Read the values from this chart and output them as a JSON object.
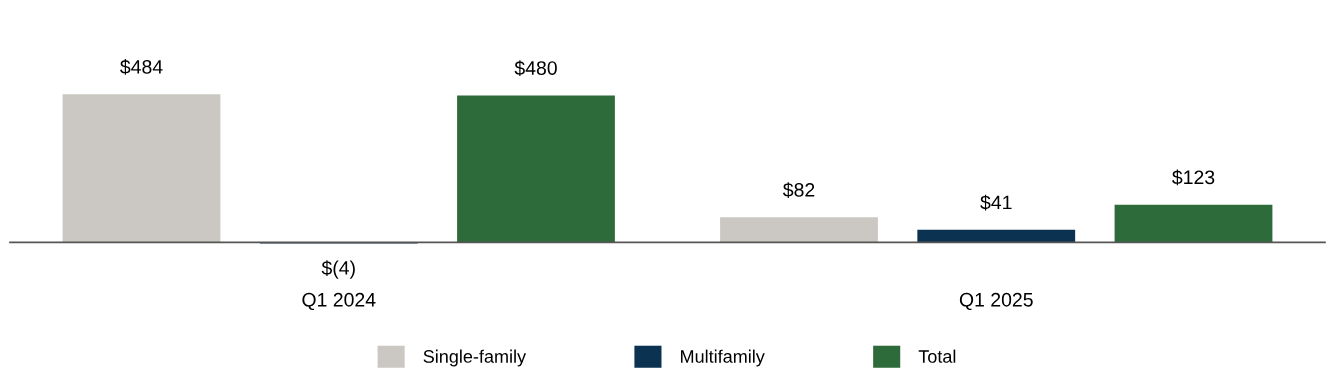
{
  "chart_data": {
    "type": "bar",
    "categories": [
      "Q1 2024",
      "Q1 2025"
    ],
    "series": [
      {
        "name": "Single-family",
        "color": "#cbc8c3",
        "values": [
          484,
          82
        ],
        "value_labels": [
          "$484",
          "$82"
        ]
      },
      {
        "name": "Multifamily",
        "color": "#0b3250",
        "values": [
          -4,
          41
        ],
        "value_labels": [
          "$(4)",
          "$41"
        ]
      },
      {
        "name": "Total",
        "color": "#2e6b3a",
        "values": [
          480,
          123
        ],
        "value_labels": [
          "$480",
          "$123"
        ]
      }
    ],
    "tick_labels": "x",
    "grid": false,
    "legend": "bottom"
  }
}
